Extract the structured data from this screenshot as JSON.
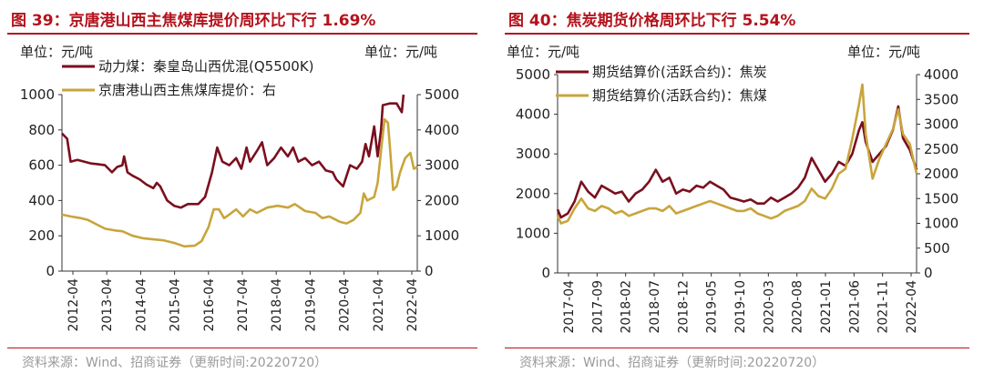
{
  "colors": {
    "title": "#b5121b",
    "series_dark": "#7a0f1e",
    "series_gold": "#c8a53c",
    "source": "#9a9a9a"
  },
  "chart_data": [
    {
      "type": "line",
      "title": "图 39：京唐港山西主焦煤库提价周环比下行 1.69%",
      "y_unit_left": "单位：元/吨",
      "y_unit_right": "单位：元/吨",
      "ylim_left": [
        0,
        1000
      ],
      "ylim_right": [
        0,
        5000
      ],
      "yticks_left": [
        "1000",
        "800",
        "600",
        "400",
        "200",
        "0"
      ],
      "yticks_right": [
        "5000",
        "4000",
        "3000",
        "2000",
        "1000",
        "0"
      ],
      "x_tick_labels": [
        "2012-04",
        "2013-04",
        "2014-04",
        "2015-04",
        "2016-04",
        "2017-04",
        "2018-04",
        "2019-04",
        "2020-04",
        "2021-04",
        "2022-04"
      ],
      "x_range": [
        2012.25,
        2022.55
      ],
      "grid": false,
      "legend_position": "top-left",
      "source": "资料来源：Wind、招商证券（更新时间:20220720）",
      "series": [
        {
          "name": "动力煤：秦皇岛山西优混(Q5500K)",
          "axis": "left",
          "points": [
            [
              2012.25,
              780
            ],
            [
              2012.4,
              750
            ],
            [
              2012.5,
              620
            ],
            [
              2012.7,
              630
            ],
            [
              2012.9,
              620
            ],
            [
              2013.1,
              610
            ],
            [
              2013.3,
              605
            ],
            [
              2013.5,
              600
            ],
            [
              2013.7,
              560
            ],
            [
              2013.85,
              590
            ],
            [
              2014.0,
              600
            ],
            [
              2014.05,
              650
            ],
            [
              2014.15,
              560
            ],
            [
              2014.3,
              540
            ],
            [
              2014.5,
              520
            ],
            [
              2014.7,
              490
            ],
            [
              2014.9,
              470
            ],
            [
              2015.0,
              500
            ],
            [
              2015.1,
              480
            ],
            [
              2015.3,
              400
            ],
            [
              2015.5,
              370
            ],
            [
              2015.7,
              360
            ],
            [
              2015.9,
              380
            ],
            [
              2016.2,
              380
            ],
            [
              2016.4,
              420
            ],
            [
              2016.6,
              560
            ],
            [
              2016.75,
              700
            ],
            [
              2016.9,
              620
            ],
            [
              2017.1,
              600
            ],
            [
              2017.3,
              640
            ],
            [
              2017.45,
              580
            ],
            [
              2017.6,
              700
            ],
            [
              2017.7,
              620
            ],
            [
              2017.9,
              680
            ],
            [
              2018.05,
              730
            ],
            [
              2018.2,
              600
            ],
            [
              2018.4,
              640
            ],
            [
              2018.6,
              700
            ],
            [
              2018.8,
              650
            ],
            [
              2018.95,
              700
            ],
            [
              2019.1,
              620
            ],
            [
              2019.3,
              640
            ],
            [
              2019.5,
              600
            ],
            [
              2019.7,
              620
            ],
            [
              2019.9,
              570
            ],
            [
              2020.1,
              560
            ],
            [
              2020.2,
              520
            ],
            [
              2020.4,
              480
            ],
            [
              2020.6,
              600
            ],
            [
              2020.8,
              580
            ],
            [
              2020.95,
              620
            ],
            [
              2021.05,
              720
            ],
            [
              2021.15,
              650
            ],
            [
              2021.3,
              820
            ],
            [
              2021.4,
              650
            ],
            [
              2021.5,
              800
            ],
            [
              2021.55,
              940
            ],
            [
              2021.75,
              950
            ],
            [
              2021.95,
              950
            ],
            [
              2022.1,
              900
            ],
            [
              2022.15,
              1000
            ]
          ]
        },
        {
          "name": "京唐港山西主焦煤库提价：右",
          "axis": "right",
          "points": [
            [
              2012.25,
              1600
            ],
            [
              2012.5,
              1550
            ],
            [
              2012.8,
              1500
            ],
            [
              2013.0,
              1450
            ],
            [
              2013.2,
              1350
            ],
            [
              2013.5,
              1200
            ],
            [
              2013.8,
              1150
            ],
            [
              2014.0,
              1130
            ],
            [
              2014.3,
              1000
            ],
            [
              2014.6,
              930
            ],
            [
              2014.9,
              900
            ],
            [
              2015.2,
              870
            ],
            [
              2015.5,
              800
            ],
            [
              2015.8,
              700
            ],
            [
              2016.1,
              720
            ],
            [
              2016.3,
              850
            ],
            [
              2016.5,
              1250
            ],
            [
              2016.65,
              1750
            ],
            [
              2016.8,
              1750
            ],
            [
              2016.95,
              1500
            ],
            [
              2017.1,
              1600
            ],
            [
              2017.3,
              1750
            ],
            [
              2017.5,
              1550
            ],
            [
              2017.7,
              1750
            ],
            [
              2017.9,
              1650
            ],
            [
              2018.2,
              1800
            ],
            [
              2018.5,
              1850
            ],
            [
              2018.8,
              1800
            ],
            [
              2019.0,
              1900
            ],
            [
              2019.3,
              1700
            ],
            [
              2019.6,
              1650
            ],
            [
              2019.8,
              1500
            ],
            [
              2020.0,
              1550
            ],
            [
              2020.3,
              1400
            ],
            [
              2020.5,
              1350
            ],
            [
              2020.7,
              1450
            ],
            [
              2020.9,
              1650
            ],
            [
              2021.0,
              2200
            ],
            [
              2021.1,
              2000
            ],
            [
              2021.3,
              2100
            ],
            [
              2021.4,
              2500
            ],
            [
              2021.5,
              3400
            ],
            [
              2021.6,
              4300
            ],
            [
              2021.7,
              4200
            ],
            [
              2021.75,
              3600
            ],
            [
              2021.85,
              2300
            ],
            [
              2021.95,
              2400
            ],
            [
              2022.05,
              2800
            ],
            [
              2022.2,
              3200
            ],
            [
              2022.35,
              3350
            ],
            [
              2022.45,
              2900
            ],
            [
              2022.55,
              2950
            ]
          ]
        }
      ]
    },
    {
      "type": "line",
      "title": "图 40：焦炭期货价格周环比下行 5.54%",
      "y_unit_left": "单位：元/吨",
      "y_unit_right": "单位：元/吨",
      "ylim_left": [
        0,
        5000
      ],
      "ylim_right": [
        0,
        4000
      ],
      "yticks_left": [
        "5000",
        "4000",
        "3000",
        "2000",
        "1000",
        "0"
      ],
      "yticks_right": [
        "4000",
        "3500",
        "3000",
        "2500",
        "2000",
        "1500",
        "1000",
        "500",
        "0"
      ],
      "x_tick_labels": [
        "2017-04",
        "2017-09",
        "2018-02",
        "2018-07",
        "2018-12",
        "2019-05",
        "2019-10",
        "2020-03",
        "2020-08",
        "2021-01",
        "2021-06",
        "2021-11",
        "2022-04"
      ],
      "x_range": [
        2017.25,
        2022.55
      ],
      "grid": false,
      "legend_position": "top-left",
      "source": "资料来源：Wind、招商证券（更新时间:20220720）",
      "series": [
        {
          "name": "期货结算价(活跃合约)：焦炭",
          "axis": "left",
          "points": [
            [
              2017.25,
              1600
            ],
            [
              2017.3,
              1400
            ],
            [
              2017.4,
              1500
            ],
            [
              2017.5,
              1800
            ],
            [
              2017.6,
              2300
            ],
            [
              2017.7,
              2050
            ],
            [
              2017.8,
              1900
            ],
            [
              2017.9,
              2200
            ],
            [
              2018.0,
              2100
            ],
            [
              2018.1,
              2000
            ],
            [
              2018.2,
              2050
            ],
            [
              2018.3,
              1800
            ],
            [
              2018.4,
              2000
            ],
            [
              2018.5,
              2100
            ],
            [
              2018.6,
              2300
            ],
            [
              2018.7,
              2600
            ],
            [
              2018.8,
              2300
            ],
            [
              2018.9,
              2400
            ],
            [
              2019.0,
              2000
            ],
            [
              2019.1,
              2100
            ],
            [
              2019.2,
              2050
            ],
            [
              2019.3,
              2200
            ],
            [
              2019.4,
              2150
            ],
            [
              2019.5,
              2300
            ],
            [
              2019.6,
              2200
            ],
            [
              2019.7,
              2100
            ],
            [
              2019.8,
              1900
            ],
            [
              2019.9,
              1850
            ],
            [
              2020.0,
              1800
            ],
            [
              2020.1,
              1850
            ],
            [
              2020.2,
              1750
            ],
            [
              2020.3,
              1750
            ],
            [
              2020.4,
              1900
            ],
            [
              2020.5,
              1800
            ],
            [
              2020.6,
              1900
            ],
            [
              2020.7,
              2000
            ],
            [
              2020.8,
              2150
            ],
            [
              2020.9,
              2400
            ],
            [
              2021.0,
              2900
            ],
            [
              2021.1,
              2600
            ],
            [
              2021.2,
              2300
            ],
            [
              2021.3,
              2500
            ],
            [
              2021.4,
              2800
            ],
            [
              2021.5,
              2700
            ],
            [
              2021.6,
              3000
            ],
            [
              2021.7,
              3600
            ],
            [
              2021.75,
              3800
            ],
            [
              2021.8,
              3300
            ],
            [
              2021.9,
              2800
            ],
            [
              2022.0,
              3000
            ],
            [
              2022.1,
              3200
            ],
            [
              2022.2,
              3600
            ],
            [
              2022.28,
              4200
            ],
            [
              2022.35,
              3400
            ],
            [
              2022.45,
              3100
            ],
            [
              2022.55,
              2600
            ]
          ]
        },
        {
          "name": "期货结算价(活跃合约)：焦煤",
          "axis": "right",
          "points": [
            [
              2017.25,
              1150
            ],
            [
              2017.3,
              1000
            ],
            [
              2017.4,
              1050
            ],
            [
              2017.5,
              1300
            ],
            [
              2017.6,
              1500
            ],
            [
              2017.7,
              1300
            ],
            [
              2017.8,
              1250
            ],
            [
              2017.9,
              1350
            ],
            [
              2018.0,
              1300
            ],
            [
              2018.1,
              1200
            ],
            [
              2018.2,
              1250
            ],
            [
              2018.3,
              1150
            ],
            [
              2018.4,
              1200
            ],
            [
              2018.5,
              1250
            ],
            [
              2018.6,
              1300
            ],
            [
              2018.7,
              1300
            ],
            [
              2018.8,
              1250
            ],
            [
              2018.9,
              1350
            ],
            [
              2019.0,
              1200
            ],
            [
              2019.1,
              1250
            ],
            [
              2019.2,
              1300
            ],
            [
              2019.3,
              1350
            ],
            [
              2019.4,
              1400
            ],
            [
              2019.5,
              1450
            ],
            [
              2019.6,
              1400
            ],
            [
              2019.7,
              1350
            ],
            [
              2019.8,
              1300
            ],
            [
              2019.9,
              1250
            ],
            [
              2020.0,
              1250
            ],
            [
              2020.1,
              1300
            ],
            [
              2020.2,
              1200
            ],
            [
              2020.3,
              1150
            ],
            [
              2020.4,
              1100
            ],
            [
              2020.5,
              1150
            ],
            [
              2020.6,
              1250
            ],
            [
              2020.7,
              1300
            ],
            [
              2020.8,
              1350
            ],
            [
              2020.9,
              1450
            ],
            [
              2021.0,
              1700
            ],
            [
              2021.1,
              1550
            ],
            [
              2021.2,
              1500
            ],
            [
              2021.3,
              1700
            ],
            [
              2021.4,
              2000
            ],
            [
              2021.5,
              2100
            ],
            [
              2021.6,
              2700
            ],
            [
              2021.7,
              3400
            ],
            [
              2021.75,
              3800
            ],
            [
              2021.8,
              2800
            ],
            [
              2021.9,
              1900
            ],
            [
              2022.0,
              2300
            ],
            [
              2022.1,
              2600
            ],
            [
              2022.2,
              2900
            ],
            [
              2022.28,
              3300
            ],
            [
              2022.35,
              2800
            ],
            [
              2022.45,
              2600
            ],
            [
              2022.55,
              2000
            ]
          ]
        }
      ]
    }
  ]
}
